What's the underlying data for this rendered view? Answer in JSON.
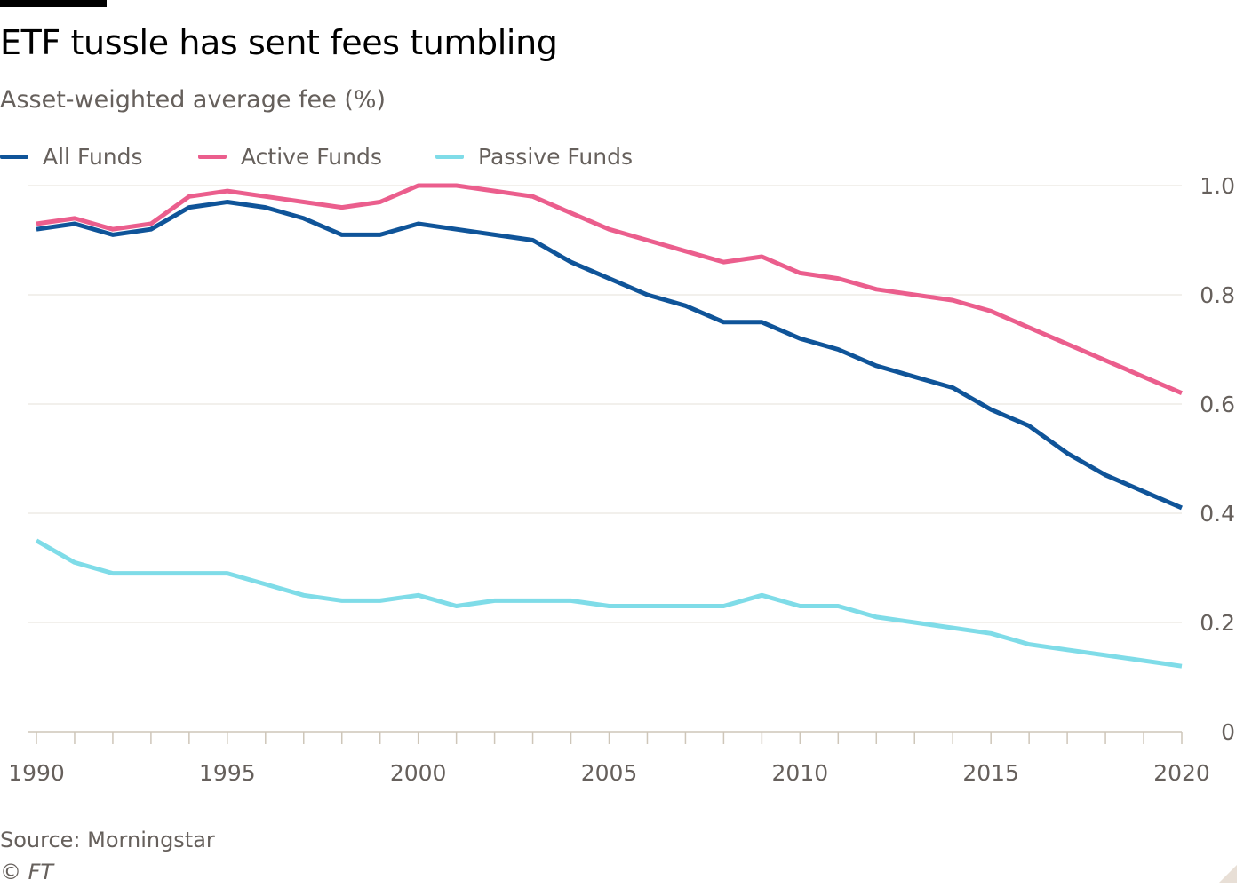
{
  "header": {
    "title": "ETF tussle has sent fees tumbling",
    "subtitle": "Asset-weighted average fee (%)"
  },
  "legend": [
    {
      "label": "All Funds",
      "color": "#0f5499"
    },
    {
      "label": "Active Funds",
      "color": "#eb5e8d"
    },
    {
      "label": "Passive Funds",
      "color": "#7fdce8"
    }
  ],
  "footer": {
    "source": "Source: Morningstar",
    "credit": "© FT"
  },
  "chart_data": {
    "type": "line",
    "title": "ETF tussle has sent fees tumbling",
    "subtitle": "Asset-weighted average fee (%)",
    "xlabel": "",
    "ylabel": "Asset-weighted average fee (%)",
    "x": [
      1990,
      1991,
      1992,
      1993,
      1994,
      1995,
      1996,
      1997,
      1998,
      1999,
      2000,
      2001,
      2002,
      2003,
      2004,
      2005,
      2006,
      2007,
      2008,
      2009,
      2010,
      2011,
      2012,
      2013,
      2014,
      2015,
      2016,
      2017,
      2018,
      2019,
      2020
    ],
    "xlim": [
      1990,
      2020
    ],
    "ylim": [
      0,
      1.0
    ],
    "x_ticks": [
      1990,
      1995,
      2000,
      2005,
      2010,
      2015,
      2020
    ],
    "x_tick_labels": [
      "1990",
      "1995",
      "2000",
      "2005",
      "2010",
      "2015",
      "2020"
    ],
    "y_ticks": [
      0,
      0.2,
      0.4,
      0.6,
      0.8,
      1.0
    ],
    "y_tick_labels": [
      "0",
      "0.2",
      "0.4",
      "0.6",
      "0.8",
      "1.0"
    ],
    "y_axis_side": "right",
    "grid": true,
    "legend_position": "top-left",
    "series": [
      {
        "name": "All Funds",
        "color": "#0f5499",
        "values": [
          0.92,
          0.93,
          0.91,
          0.92,
          0.96,
          0.97,
          0.96,
          0.94,
          0.91,
          0.91,
          0.93,
          0.92,
          0.91,
          0.9,
          0.86,
          0.83,
          0.8,
          0.78,
          0.75,
          0.75,
          0.72,
          0.7,
          0.67,
          0.65,
          0.63,
          0.59,
          0.56,
          0.51,
          0.47,
          0.44,
          0.41
        ]
      },
      {
        "name": "Active Funds",
        "color": "#eb5e8d",
        "values": [
          0.93,
          0.94,
          0.92,
          0.93,
          0.98,
          0.99,
          0.98,
          0.97,
          0.96,
          0.97,
          1.0,
          1.0,
          0.99,
          0.98,
          0.95,
          0.92,
          0.9,
          0.88,
          0.86,
          0.87,
          0.84,
          0.83,
          0.81,
          0.8,
          0.79,
          0.77,
          0.74,
          0.71,
          0.68,
          0.65,
          0.62
        ]
      },
      {
        "name": "Passive Funds",
        "color": "#7fdce8",
        "values": [
          0.35,
          0.31,
          0.29,
          0.29,
          0.29,
          0.29,
          0.27,
          0.25,
          0.24,
          0.24,
          0.25,
          0.23,
          0.24,
          0.24,
          0.24,
          0.23,
          0.23,
          0.23,
          0.23,
          0.25,
          0.23,
          0.23,
          0.21,
          0.2,
          0.19,
          0.18,
          0.16,
          0.15,
          0.14,
          0.13,
          0.12
        ]
      }
    ]
  }
}
